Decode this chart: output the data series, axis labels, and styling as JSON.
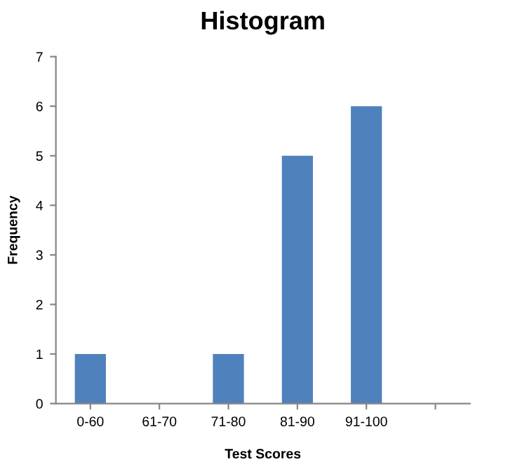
{
  "chart_data": {
    "type": "bar",
    "title": "Histogram",
    "xlabel": "Test Scores",
    "ylabel": "Frequency",
    "categories": [
      "0-60",
      "61-70",
      "71-80",
      "81-90",
      "91-100",
      null
    ],
    "series": [
      {
        "color": "#4f81bd",
        "values": [
          1,
          0,
          1,
          5,
          6,
          null
        ]
      }
    ],
    "ylim": [
      0,
      7
    ],
    "yticks": [
      0,
      1,
      2,
      3,
      4,
      5,
      6,
      7
    ],
    "grid": false,
    "legend": false
  }
}
